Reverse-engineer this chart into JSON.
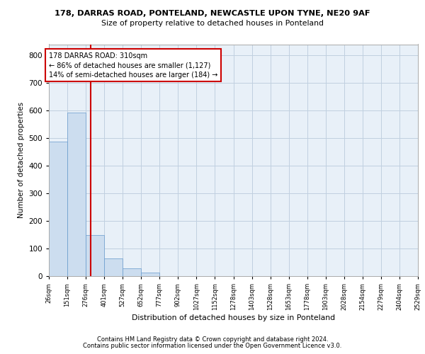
{
  "title1": "178, DARRAS ROAD, PONTELAND, NEWCASTLE UPON TYNE, NE20 9AF",
  "title2": "Size of property relative to detached houses in Ponteland",
  "xlabel": "Distribution of detached houses by size in Ponteland",
  "ylabel": "Number of detached properties",
  "bar_color": "#ccddef",
  "bar_edge_color": "#6699cc",
  "grid_color": "#c0d0e0",
  "bg_color": "#e8f0f8",
  "vline_x": 310,
  "vline_color": "#cc0000",
  "annotation_text_line1": "178 DARRAS ROAD: 310sqm",
  "annotation_text_line2": "← 86% of detached houses are smaller (1,127)",
  "annotation_text_line3": "14% of semi-detached houses are larger (184) →",
  "footer1": "Contains HM Land Registry data © Crown copyright and database right 2024.",
  "footer2": "Contains public sector information licensed under the Open Government Licence v3.0.",
  "bin_edges": [
    26,
    151,
    276,
    401,
    527,
    652,
    777,
    902,
    1027,
    1152,
    1278,
    1403,
    1528,
    1653,
    1778,
    1903,
    2028,
    2154,
    2279,
    2404,
    2529
  ],
  "bar_heights": [
    487,
    592,
    150,
    63,
    28,
    14,
    0,
    0,
    0,
    0,
    0,
    0,
    0,
    0,
    0,
    0,
    0,
    0,
    0,
    0
  ],
  "ylim": [
    0,
    840
  ],
  "yticks": [
    0,
    100,
    200,
    300,
    400,
    500,
    600,
    700,
    800
  ]
}
